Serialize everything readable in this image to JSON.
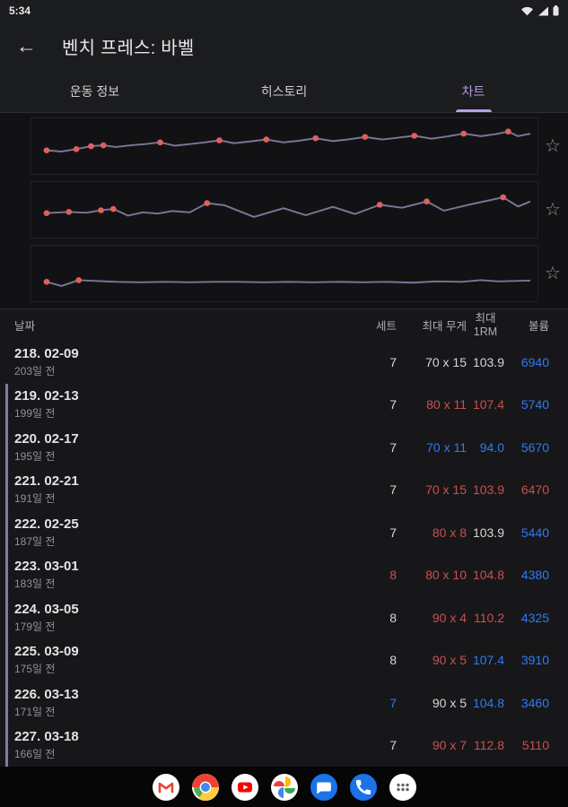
{
  "status_bar": {
    "time": "5:34",
    "icons": [
      "wifi-icon",
      "signal-icon",
      "battery-icon"
    ]
  },
  "header": {
    "back_icon": "arrow-left-icon",
    "title": "벤치 프레스: 바벨"
  },
  "icons": {
    "back_arrow": "←",
    "star": "☆"
  },
  "tabs": {
    "items": [
      {
        "label": "운동 정보",
        "active": false
      },
      {
        "label": "히스토리",
        "active": false
      },
      {
        "label": "차트",
        "active": true
      }
    ],
    "active_color": "#b49ae4"
  },
  "chart_data": [
    {
      "type": "line",
      "title": "",
      "line_color": "#7b7699",
      "marker_color": "#e0605f",
      "x_range": [
        0,
        1
      ],
      "y_range": [
        0,
        1
      ],
      "grid": "top-bottom-borders",
      "legend": "none",
      "points": [
        [
          0.02,
          0.4,
          1
        ],
        [
          0.05,
          0.37,
          0
        ],
        [
          0.08,
          0.43,
          1
        ],
        [
          0.11,
          0.5,
          1
        ],
        [
          0.135,
          0.52,
          1
        ],
        [
          0.16,
          0.48,
          0
        ],
        [
          0.19,
          0.52,
          0
        ],
        [
          0.22,
          0.55,
          0
        ],
        [
          0.25,
          0.59,
          1
        ],
        [
          0.28,
          0.51,
          0
        ],
        [
          0.31,
          0.55,
          0
        ],
        [
          0.34,
          0.59,
          0
        ],
        [
          0.37,
          0.64,
          1
        ],
        [
          0.4,
          0.57,
          0
        ],
        [
          0.43,
          0.61,
          0
        ],
        [
          0.465,
          0.66,
          1
        ],
        [
          0.5,
          0.59,
          0
        ],
        [
          0.53,
          0.63,
          0
        ],
        [
          0.565,
          0.69,
          1
        ],
        [
          0.6,
          0.62,
          0
        ],
        [
          0.63,
          0.66,
          0
        ],
        [
          0.665,
          0.72,
          1
        ],
        [
          0.7,
          0.66,
          0
        ],
        [
          0.73,
          0.7,
          0
        ],
        [
          0.765,
          0.75,
          1
        ],
        [
          0.8,
          0.68,
          0
        ],
        [
          0.83,
          0.73,
          0
        ],
        [
          0.865,
          0.8,
          1
        ],
        [
          0.9,
          0.74,
          0
        ],
        [
          0.93,
          0.79,
          0
        ],
        [
          0.955,
          0.85,
          1
        ],
        [
          0.975,
          0.74,
          0
        ],
        [
          1.0,
          0.8,
          0
        ]
      ]
    },
    {
      "type": "line",
      "title": "",
      "line_color": "#7b7699",
      "marker_color": "#e0605f",
      "x_range": [
        0,
        1
      ],
      "y_range": [
        0,
        1
      ],
      "grid": "top-bottom-borders",
      "legend": "none",
      "points": [
        [
          0.02,
          0.42,
          1
        ],
        [
          0.065,
          0.45,
          1
        ],
        [
          0.1,
          0.43,
          0
        ],
        [
          0.13,
          0.49,
          1
        ],
        [
          0.155,
          0.52,
          1
        ],
        [
          0.185,
          0.36,
          0
        ],
        [
          0.215,
          0.44,
          0
        ],
        [
          0.245,
          0.41,
          0
        ],
        [
          0.275,
          0.47,
          0
        ],
        [
          0.31,
          0.44,
          0
        ],
        [
          0.345,
          0.66,
          1
        ],
        [
          0.38,
          0.61,
          0
        ],
        [
          0.44,
          0.33,
          0
        ],
        [
          0.5,
          0.54,
          0
        ],
        [
          0.545,
          0.37,
          0
        ],
        [
          0.6,
          0.57,
          0
        ],
        [
          0.645,
          0.4,
          0
        ],
        [
          0.695,
          0.62,
          1
        ],
        [
          0.74,
          0.55,
          0
        ],
        [
          0.79,
          0.7,
          1
        ],
        [
          0.825,
          0.48,
          0
        ],
        [
          0.875,
          0.62,
          0
        ],
        [
          0.945,
          0.8,
          1
        ],
        [
          0.975,
          0.58,
          0
        ],
        [
          1.0,
          0.7,
          0
        ]
      ]
    },
    {
      "type": "line",
      "title": "",
      "line_color": "#7b7699",
      "marker_color": "#e0605f",
      "x_range": [
        0,
        1
      ],
      "y_range": [
        0,
        1
      ],
      "grid": "top-bottom-borders",
      "legend": "none",
      "points": [
        [
          0.02,
          0.3,
          1
        ],
        [
          0.05,
          0.2,
          0
        ],
        [
          0.085,
          0.34,
          1
        ],
        [
          0.12,
          0.32,
          0
        ],
        [
          0.16,
          0.3,
          0
        ],
        [
          0.21,
          0.29,
          0
        ],
        [
          0.26,
          0.3,
          0
        ],
        [
          0.31,
          0.29,
          0
        ],
        [
          0.36,
          0.3,
          0
        ],
        [
          0.41,
          0.3,
          0
        ],
        [
          0.46,
          0.29,
          0
        ],
        [
          0.51,
          0.3,
          0
        ],
        [
          0.56,
          0.29,
          0
        ],
        [
          0.61,
          0.3,
          0
        ],
        [
          0.66,
          0.29,
          0
        ],
        [
          0.71,
          0.3,
          0
        ],
        [
          0.76,
          0.28,
          0
        ],
        [
          0.81,
          0.31,
          0
        ],
        [
          0.86,
          0.3,
          0
        ],
        [
          0.9,
          0.34,
          0
        ],
        [
          0.935,
          0.31,
          0
        ],
        [
          0.97,
          0.32,
          0
        ],
        [
          1.0,
          0.33,
          0
        ]
      ]
    }
  ],
  "table": {
    "columns": {
      "date": "날짜",
      "sets": "세트",
      "max_weight": "최대 무게",
      "max_1rm": "최대\n1RM",
      "volume": "볼륨"
    },
    "value_colors": {
      "white": "#d6d6d8",
      "red": "#c9504e",
      "blue": "#2e7bf2"
    },
    "rows": [
      {
        "date": "218. 02-09",
        "ago": "203일 전",
        "sets": "7",
        "sets_color": "white",
        "max_weight": "70 x 15",
        "max_weight_color": "white",
        "max_1rm": "103.9",
        "max_1rm_color": "white",
        "volume": "6940",
        "volume_color": "blue",
        "stripe": false
      },
      {
        "date": "219. 02-13",
        "ago": "199일 전",
        "sets": "7",
        "sets_color": "white",
        "max_weight": "80 x 11",
        "max_weight_color": "red",
        "max_1rm": "107.4",
        "max_1rm_color": "red",
        "volume": "5740",
        "volume_color": "blue",
        "stripe": true
      },
      {
        "date": "220. 02-17",
        "ago": "195일 전",
        "sets": "7",
        "sets_color": "white",
        "max_weight": "70 x 11",
        "max_weight_color": "blue",
        "max_1rm": "94.0",
        "max_1rm_color": "blue",
        "volume": "5670",
        "volume_color": "blue",
        "stripe": true
      },
      {
        "date": "221. 02-21",
        "ago": "191일 전",
        "sets": "7",
        "sets_color": "white",
        "max_weight": "70 x 15",
        "max_weight_color": "red",
        "max_1rm": "103.9",
        "max_1rm_color": "red",
        "volume": "6470",
        "volume_color": "red",
        "stripe": true
      },
      {
        "date": "222. 02-25",
        "ago": "187일 전",
        "sets": "7",
        "sets_color": "white",
        "max_weight": "80 x 8",
        "max_weight_color": "red",
        "max_1rm": "103.9",
        "max_1rm_color": "white",
        "volume": "5440",
        "volume_color": "blue",
        "stripe": true
      },
      {
        "date": "223. 03-01",
        "ago": "183일 전",
        "sets": "8",
        "sets_color": "red",
        "max_weight": "80 x 10",
        "max_weight_color": "red",
        "max_1rm": "104.8",
        "max_1rm_color": "red",
        "volume": "4380",
        "volume_color": "blue",
        "stripe": true
      },
      {
        "date": "224. 03-05",
        "ago": "179일 전",
        "sets": "8",
        "sets_color": "white",
        "max_weight": "90 x 4",
        "max_weight_color": "red",
        "max_1rm": "110.2",
        "max_1rm_color": "red",
        "volume": "4325",
        "volume_color": "blue",
        "stripe": true
      },
      {
        "date": "225. 03-09",
        "ago": "175일 전",
        "sets": "8",
        "sets_color": "white",
        "max_weight": "90 x 5",
        "max_weight_color": "red",
        "max_1rm": "107.4",
        "max_1rm_color": "blue",
        "volume": "3910",
        "volume_color": "blue",
        "stripe": true
      },
      {
        "date": "226. 03-13",
        "ago": "171일 전",
        "sets": "7",
        "sets_color": "blue",
        "max_weight": "90 x 5",
        "max_weight_color": "white",
        "max_1rm": "104.8",
        "max_1rm_color": "blue",
        "volume": "3460",
        "volume_color": "blue",
        "stripe": true
      },
      {
        "date": "227. 03-18",
        "ago": "166일 전",
        "sets": "7",
        "sets_color": "white",
        "max_weight": "90 x 7",
        "max_weight_color": "red",
        "max_1rm": "112.8",
        "max_1rm_color": "red",
        "volume": "5110",
        "volume_color": "red",
        "stripe": true
      }
    ]
  },
  "dock": {
    "icons": [
      "gmail-icon",
      "chrome-icon",
      "youtube-icon",
      "photos-icon",
      "messages-icon",
      "phone-icon",
      "app-drawer-icon"
    ]
  }
}
